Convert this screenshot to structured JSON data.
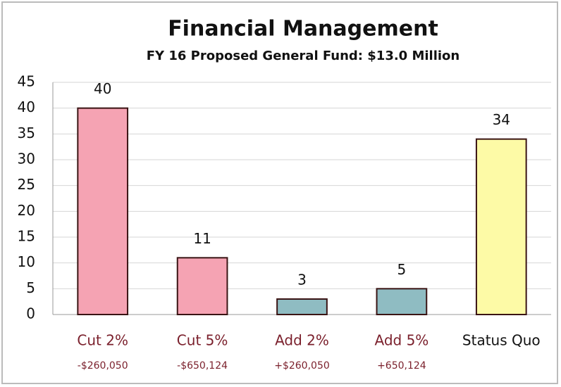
{
  "chart_data": {
    "type": "bar",
    "title": "Financial Management",
    "subtitle": "FY 16 Proposed General Fund:  $13.0 Million",
    "categories": [
      "Cut 2%",
      "Cut 5%",
      "Add 2%",
      "Add 5%",
      "Status Quo"
    ],
    "category_notes": [
      "-$260,050",
      "-$650,124",
      "+$260,050",
      "+650,124",
      null
    ],
    "category_colors": [
      "#7a1f2b",
      "#7a1f2b",
      "#7a1f2b",
      "#7a1f2b",
      "#111111"
    ],
    "values": [
      40,
      11,
      3,
      5,
      34
    ],
    "colors": [
      "#f5a3b3",
      "#f5a3b3",
      "#8fbcc2",
      "#8fbcc2",
      "#fdfaa6"
    ],
    "ylim": [
      0,
      45
    ],
    "yticks": [
      0,
      5,
      10,
      15,
      20,
      25,
      30,
      35,
      40,
      45
    ],
    "grid": true
  }
}
